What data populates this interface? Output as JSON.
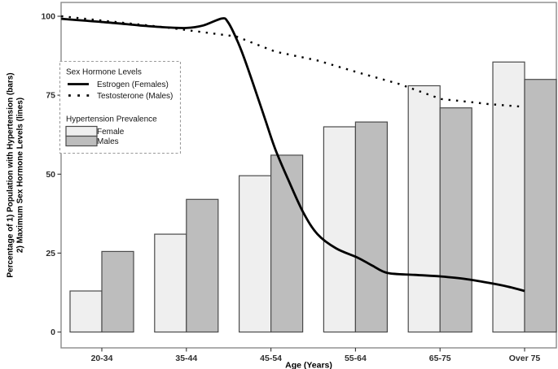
{
  "chart_data": {
    "type": "combo-bar-line",
    "title": "",
    "xlabel": "Age (Years)",
    "ylabel_line1": "Percentage of 1) Population with Hypertension (bars)",
    "ylabel_line2": "2) Maximum Sex Hormone Levels (lines)",
    "categories": [
      "20-34",
      "35-44",
      "45-54",
      "55-64",
      "65-75",
      "Over 75"
    ],
    "y_ticks": [
      0,
      25,
      50,
      75,
      100
    ],
    "ylim": [
      0,
      105
    ],
    "grid": false,
    "legend_position": "inside-upper-left",
    "bar_series": [
      {
        "name": "Female",
        "fill": "#efefef",
        "values": [
          13,
          31,
          49.5,
          65,
          78,
          85.5
        ]
      },
      {
        "name": "Males",
        "fill": "#bdbdbd",
        "values": [
          25.5,
          42,
          56,
          66.5,
          71,
          80
        ]
      }
    ],
    "line_series": [
      {
        "name": "Estrogen (Females)",
        "style": "solid",
        "color": "#000000",
        "points": [
          [
            -0.48,
            99.2
          ],
          [
            -0.2,
            98.6
          ],
          [
            0.09,
            98.0
          ],
          [
            0.45,
            97.1
          ],
          [
            0.75,
            96.5
          ],
          [
            1.0,
            96.3
          ],
          [
            1.2,
            97.1
          ],
          [
            1.42,
            99.3
          ],
          [
            1.49,
            98.2
          ],
          [
            1.59,
            93.0
          ],
          [
            1.68,
            87.0
          ],
          [
            1.81,
            77.0
          ],
          [
            1.93,
            67.5
          ],
          [
            2.05,
            58.0
          ],
          [
            2.2,
            48.5
          ],
          [
            2.38,
            38.0
          ],
          [
            2.55,
            31.0
          ],
          [
            2.77,
            26.5
          ],
          [
            3.03,
            23.5
          ],
          [
            3.2,
            21.0
          ],
          [
            3.38,
            18.7
          ],
          [
            3.7,
            18.1
          ],
          [
            4.01,
            17.6
          ],
          [
            4.3,
            16.8
          ],
          [
            4.57,
            15.6
          ],
          [
            4.8,
            14.4
          ],
          [
            5.0,
            13.0
          ]
        ]
      },
      {
        "name": "Testosterone (Males)",
        "style": "dotted",
        "color": "#000000",
        "points": [
          [
            -0.48,
            100.0
          ],
          [
            0.09,
            98.4
          ],
          [
            0.72,
            96.6
          ],
          [
            1.07,
            95.4
          ],
          [
            1.59,
            93.6
          ],
          [
            2.05,
            88.8
          ],
          [
            2.55,
            86.0
          ],
          [
            3.03,
            82.2
          ],
          [
            3.51,
            78.6
          ],
          [
            4.01,
            73.8
          ],
          [
            4.3,
            73.0
          ],
          [
            4.57,
            72.2
          ],
          [
            5.0,
            71.3
          ]
        ]
      }
    ],
    "point_units": "x = category index (0 at first category center), y = percent"
  },
  "legend": {
    "line_group_title": "Sex Hormone Levels",
    "estrogen_label": "Estrogen (Females)",
    "testosterone_label": "Testosterone (Males)",
    "bar_group_title": "Hypertension Prevalence",
    "female_label": "Female",
    "males_label": "Males"
  },
  "colors": {
    "female_bar": "#efefef",
    "male_bar": "#bdbdbd",
    "bar_border": "#4a4a4a",
    "line": "#000000",
    "panel_border": "#8a8a8a",
    "axis_text": "#2e2e2e",
    "legend_border": "#999999"
  }
}
